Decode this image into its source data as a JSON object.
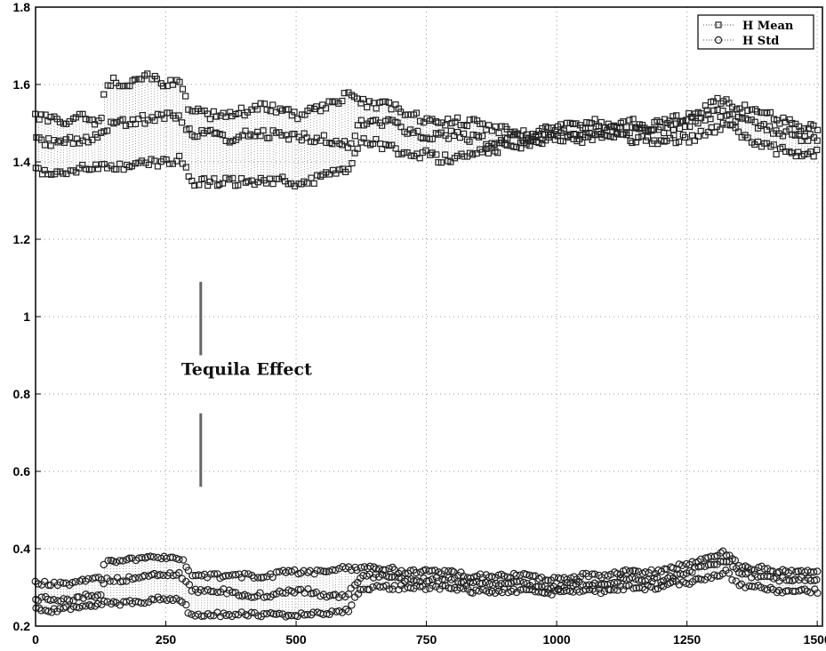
{
  "chart_data": {
    "type": "scatter",
    "title": "",
    "xlabel": "",
    "ylabel": "",
    "xlim": [
      0,
      1510
    ],
    "ylim": [
      0.2,
      1.8
    ],
    "xticks": [
      0,
      250,
      500,
      750,
      1000,
      1250,
      1500
    ],
    "yticks": [
      0.2,
      0.4,
      0.6,
      0.8,
      1.0,
      1.2,
      1.4,
      1.6,
      1.8
    ],
    "xtick_labels": [
      "0",
      "250",
      "500",
      "750",
      "1000",
      "1250",
      "1500"
    ],
    "ytick_labels": [
      "0.2",
      "0.4",
      "0.6",
      "0.8",
      "1",
      "1.2",
      "1.4",
      "1.6",
      "1.8"
    ],
    "grid": true,
    "legend_position": "top-right",
    "series": [
      {
        "name": "H  Mean",
        "marker": "square",
        "line": "dotted",
        "color": "#333333",
        "x": [
          0,
          25,
          50,
          75,
          100,
          125,
          135,
          150,
          175,
          200,
          225,
          250,
          275,
          300,
          310,
          325,
          350,
          375,
          400,
          425,
          450,
          475,
          500,
          525,
          550,
          575,
          600,
          625,
          650,
          675,
          700,
          725,
          750,
          775,
          800,
          825,
          850,
          875,
          900,
          925,
          950,
          975,
          1000,
          1025,
          1050,
          1075,
          1100,
          1125,
          1150,
          1175,
          1200,
          1225,
          1250,
          1275,
          1300,
          1325,
          1350,
          1375,
          1400,
          1425,
          1450,
          1475,
          1500
        ],
        "y": [
          1.52,
          1.51,
          1.5,
          1.51,
          1.52,
          1.5,
          1.6,
          1.61,
          1.6,
          1.61,
          1.62,
          1.6,
          1.61,
          1.52,
          1.53,
          1.52,
          1.52,
          1.53,
          1.53,
          1.54,
          1.54,
          1.53,
          1.52,
          1.53,
          1.54,
          1.56,
          1.57,
          1.56,
          1.54,
          1.55,
          1.53,
          1.52,
          1.51,
          1.5,
          1.51,
          1.5,
          1.5,
          1.49,
          1.48,
          1.47,
          1.47,
          1.48,
          1.49,
          1.49,
          1.5,
          1.5,
          1.49,
          1.5,
          1.5,
          1.49,
          1.5,
          1.51,
          1.52,
          1.53,
          1.55,
          1.56,
          1.54,
          1.53,
          1.52,
          1.51,
          1.5,
          1.49,
          1.49
        ],
        "y_low": [
          1.38,
          1.37,
          1.37,
          1.38,
          1.38,
          1.39,
          1.39,
          1.39,
          1.39,
          1.4,
          1.4,
          1.4,
          1.41,
          1.35,
          1.35,
          1.35,
          1.35,
          1.35,
          1.35,
          1.35,
          1.35,
          1.35,
          1.34,
          1.35,
          1.36,
          1.37,
          1.37,
          1.46,
          1.45,
          1.44,
          1.43,
          1.42,
          1.42,
          1.41,
          1.41,
          1.42,
          1.43,
          1.43,
          1.44,
          1.44,
          1.45,
          1.46,
          1.46,
          1.46,
          1.46,
          1.46,
          1.47,
          1.46,
          1.46,
          1.46,
          1.45,
          1.46,
          1.46,
          1.47,
          1.48,
          1.5,
          1.47,
          1.45,
          1.44,
          1.43,
          1.42,
          1.42,
          1.42
        ],
        "y_mid": [
          1.46,
          1.45,
          1.45,
          1.46,
          1.46,
          1.47,
          1.48,
          1.5,
          1.5,
          1.51,
          1.51,
          1.52,
          1.52,
          1.47,
          1.47,
          1.47,
          1.47,
          1.46,
          1.47,
          1.47,
          1.47,
          1.47,
          1.47,
          1.46,
          1.46,
          1.45,
          1.44,
          1.5,
          1.5,
          1.5,
          1.49,
          1.48,
          1.47,
          1.47,
          1.47,
          1.46,
          1.46,
          1.45,
          1.46,
          1.46,
          1.46,
          1.47,
          1.47,
          1.48,
          1.48,
          1.48,
          1.48,
          1.48,
          1.49,
          1.48,
          1.48,
          1.49,
          1.5,
          1.51,
          1.52,
          1.53,
          1.51,
          1.5,
          1.49,
          1.48,
          1.47,
          1.46,
          1.46
        ]
      },
      {
        "name": "H  Std",
        "marker": "circle",
        "line": "dotted",
        "color": "#333333",
        "x": [
          0,
          25,
          50,
          75,
          100,
          125,
          135,
          150,
          175,
          200,
          225,
          250,
          275,
          300,
          310,
          325,
          350,
          375,
          400,
          425,
          450,
          475,
          500,
          525,
          550,
          575,
          600,
          625,
          650,
          675,
          700,
          725,
          750,
          775,
          800,
          825,
          850,
          875,
          900,
          925,
          950,
          975,
          1000,
          1025,
          1050,
          1075,
          1100,
          1125,
          1150,
          1175,
          1200,
          1225,
          1250,
          1275,
          1300,
          1325,
          1350,
          1375,
          1400,
          1425,
          1450,
          1475,
          1500
        ],
        "y": [
          0.31,
          0.31,
          0.31,
          0.31,
          0.32,
          0.32,
          0.37,
          0.37,
          0.37,
          0.37,
          0.38,
          0.38,
          0.38,
          0.33,
          0.33,
          0.33,
          0.33,
          0.33,
          0.33,
          0.33,
          0.33,
          0.34,
          0.34,
          0.34,
          0.34,
          0.35,
          0.35,
          0.35,
          0.35,
          0.35,
          0.34,
          0.34,
          0.34,
          0.34,
          0.34,
          0.33,
          0.33,
          0.33,
          0.33,
          0.33,
          0.33,
          0.32,
          0.32,
          0.32,
          0.33,
          0.33,
          0.33,
          0.34,
          0.34,
          0.34,
          0.34,
          0.35,
          0.36,
          0.37,
          0.38,
          0.39,
          0.36,
          0.35,
          0.35,
          0.34,
          0.34,
          0.34,
          0.34
        ],
        "y_low": [
          0.25,
          0.24,
          0.24,
          0.25,
          0.25,
          0.26,
          0.26,
          0.26,
          0.26,
          0.26,
          0.27,
          0.27,
          0.27,
          0.23,
          0.23,
          0.23,
          0.23,
          0.23,
          0.23,
          0.23,
          0.23,
          0.23,
          0.23,
          0.23,
          0.23,
          0.24,
          0.24,
          0.3,
          0.3,
          0.3,
          0.3,
          0.3,
          0.3,
          0.3,
          0.3,
          0.29,
          0.29,
          0.29,
          0.29,
          0.29,
          0.29,
          0.28,
          0.29,
          0.29,
          0.29,
          0.29,
          0.29,
          0.3,
          0.3,
          0.3,
          0.3,
          0.31,
          0.31,
          0.32,
          0.33,
          0.34,
          0.31,
          0.3,
          0.3,
          0.29,
          0.29,
          0.29,
          0.29
        ],
        "y_mid": [
          0.27,
          0.27,
          0.27,
          0.27,
          0.28,
          0.28,
          0.32,
          0.32,
          0.32,
          0.33,
          0.33,
          0.33,
          0.34,
          0.29,
          0.29,
          0.29,
          0.29,
          0.29,
          0.28,
          0.28,
          0.28,
          0.29,
          0.29,
          0.29,
          0.28,
          0.28,
          0.28,
          0.33,
          0.33,
          0.33,
          0.32,
          0.32,
          0.32,
          0.32,
          0.32,
          0.31,
          0.31,
          0.31,
          0.31,
          0.31,
          0.31,
          0.3,
          0.3,
          0.31,
          0.31,
          0.31,
          0.31,
          0.32,
          0.32,
          0.32,
          0.32,
          0.33,
          0.34,
          0.35,
          0.36,
          0.37,
          0.34,
          0.33,
          0.33,
          0.32,
          0.32,
          0.32,
          0.32
        ]
      }
    ],
    "annotations": [
      {
        "text": "Tequila  Effect",
        "x": 405,
        "y": 0.85,
        "marker_x": 317,
        "segments": [
          [
            0.9,
            1.09
          ],
          [
            0.56,
            0.75
          ]
        ]
      }
    ]
  }
}
